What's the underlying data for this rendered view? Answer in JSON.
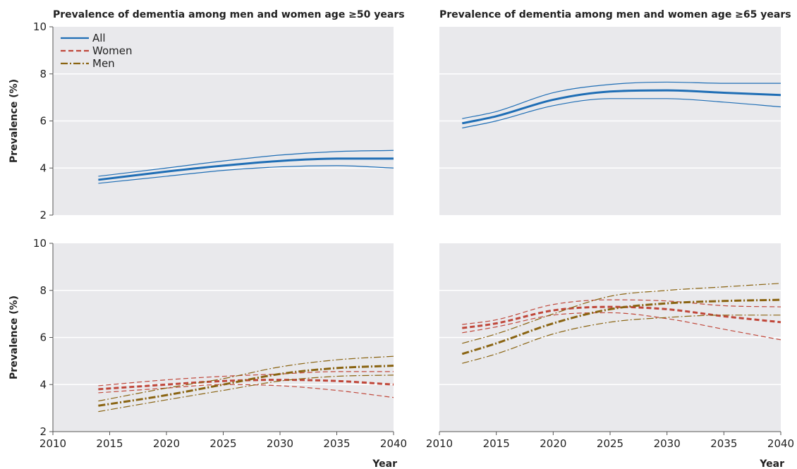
{
  "chart_data": {
    "type": "line",
    "panels": [
      {
        "id": "all50",
        "title": "Prevalence of dementia among men and women age ≥50 years",
        "ylabel": "Prevalence (%)",
        "xlabel": "",
        "xlim": [
          2010,
          2040
        ],
        "ylim": [
          2,
          10
        ],
        "series": [
          {
            "name": "All",
            "key": "all",
            "x": [
              2014,
              2020,
              2025,
              2030,
              2035,
              2040
            ],
            "y": [
              3.5,
              3.85,
              4.1,
              4.3,
              4.4,
              4.4
            ],
            "lower": [
              3.35,
              3.65,
              3.9,
              4.05,
              4.1,
              4.0
            ],
            "upper": [
              3.65,
              4.0,
              4.3,
              4.55,
              4.7,
              4.75
            ]
          }
        ]
      },
      {
        "id": "all65",
        "title": "Prevalence of dementia among men and women age ≥65 years",
        "ylabel": "",
        "xlabel": "",
        "xlim": [
          2010,
          2040
        ],
        "ylim": [
          2,
          10
        ],
        "series": [
          {
            "name": "All",
            "key": "all",
            "x": [
              2012,
              2015,
              2020,
              2025,
              2030,
              2035,
              2040
            ],
            "y": [
              5.9,
              6.2,
              6.9,
              7.25,
              7.3,
              7.2,
              7.1
            ],
            "lower": [
              5.7,
              6.0,
              6.65,
              6.95,
              6.95,
              6.8,
              6.6
            ],
            "upper": [
              6.1,
              6.4,
              7.2,
              7.55,
              7.65,
              7.6,
              7.6
            ]
          }
        ]
      },
      {
        "id": "sex50",
        "title": "",
        "ylabel": "Prevalence (%)",
        "xlabel": "",
        "xlim": [
          2010,
          2040
        ],
        "ylim": [
          2,
          10
        ],
        "series": [
          {
            "name": "Women",
            "key": "women",
            "x": [
              2014,
              2020,
              2025,
              2030,
              2035,
              2040
            ],
            "y": [
              3.8,
              4.0,
              4.15,
              4.2,
              4.15,
              4.0
            ],
            "lower": [
              3.65,
              3.85,
              4.0,
              3.95,
              3.75,
              3.45
            ],
            "upper": [
              3.95,
              4.2,
              4.35,
              4.45,
              4.55,
              4.55
            ]
          },
          {
            "name": "Men",
            "key": "men",
            "x": [
              2014,
              2020,
              2025,
              2030,
              2035,
              2040
            ],
            "y": [
              3.1,
              3.55,
              4.0,
              4.45,
              4.7,
              4.8
            ],
            "lower": [
              2.85,
              3.35,
              3.75,
              4.15,
              4.35,
              4.4
            ],
            "upper": [
              3.3,
              3.85,
              4.25,
              4.75,
              5.05,
              5.2
            ]
          }
        ]
      },
      {
        "id": "sex65",
        "title": "",
        "ylabel": "",
        "xlabel": "Year",
        "xlim": [
          2010,
          2040
        ],
        "ylim": [
          2,
          10
        ],
        "series": [
          {
            "name": "Women",
            "key": "women",
            "x": [
              2012,
              2015,
              2020,
              2025,
              2030,
              2035,
              2040
            ],
            "y": [
              6.4,
              6.6,
              7.15,
              7.3,
              7.2,
              6.9,
              6.65
            ],
            "lower": [
              6.2,
              6.45,
              6.95,
              7.05,
              6.8,
              6.35,
              5.9
            ],
            "upper": [
              6.55,
              6.75,
              7.4,
              7.6,
              7.55,
              7.35,
              7.3
            ]
          },
          {
            "name": "Men",
            "key": "men",
            "x": [
              2012,
              2015,
              2020,
              2025,
              2030,
              2035,
              2040
            ],
            "y": [
              5.3,
              5.75,
              6.6,
              7.2,
              7.45,
              7.55,
              7.6
            ],
            "lower": [
              4.9,
              5.3,
              6.15,
              6.65,
              6.85,
              6.95,
              6.95
            ],
            "upper": [
              5.75,
              6.15,
              7.0,
              7.75,
              8.0,
              8.15,
              8.3
            ]
          }
        ]
      }
    ],
    "xticks": [
      2010,
      2015,
      2020,
      2025,
      2030,
      2035,
      2040
    ],
    "yticks": [
      2,
      4,
      6,
      8,
      10
    ],
    "legend": {
      "position": "top-left",
      "items": [
        {
          "key": "all",
          "label": "All"
        },
        {
          "key": "women",
          "label": "Women"
        },
        {
          "key": "men",
          "label": "Men"
        }
      ]
    },
    "colors": {
      "all": "#1f6eb5",
      "women": "#c0473a",
      "men": "#8a6412"
    },
    "grid": true
  }
}
